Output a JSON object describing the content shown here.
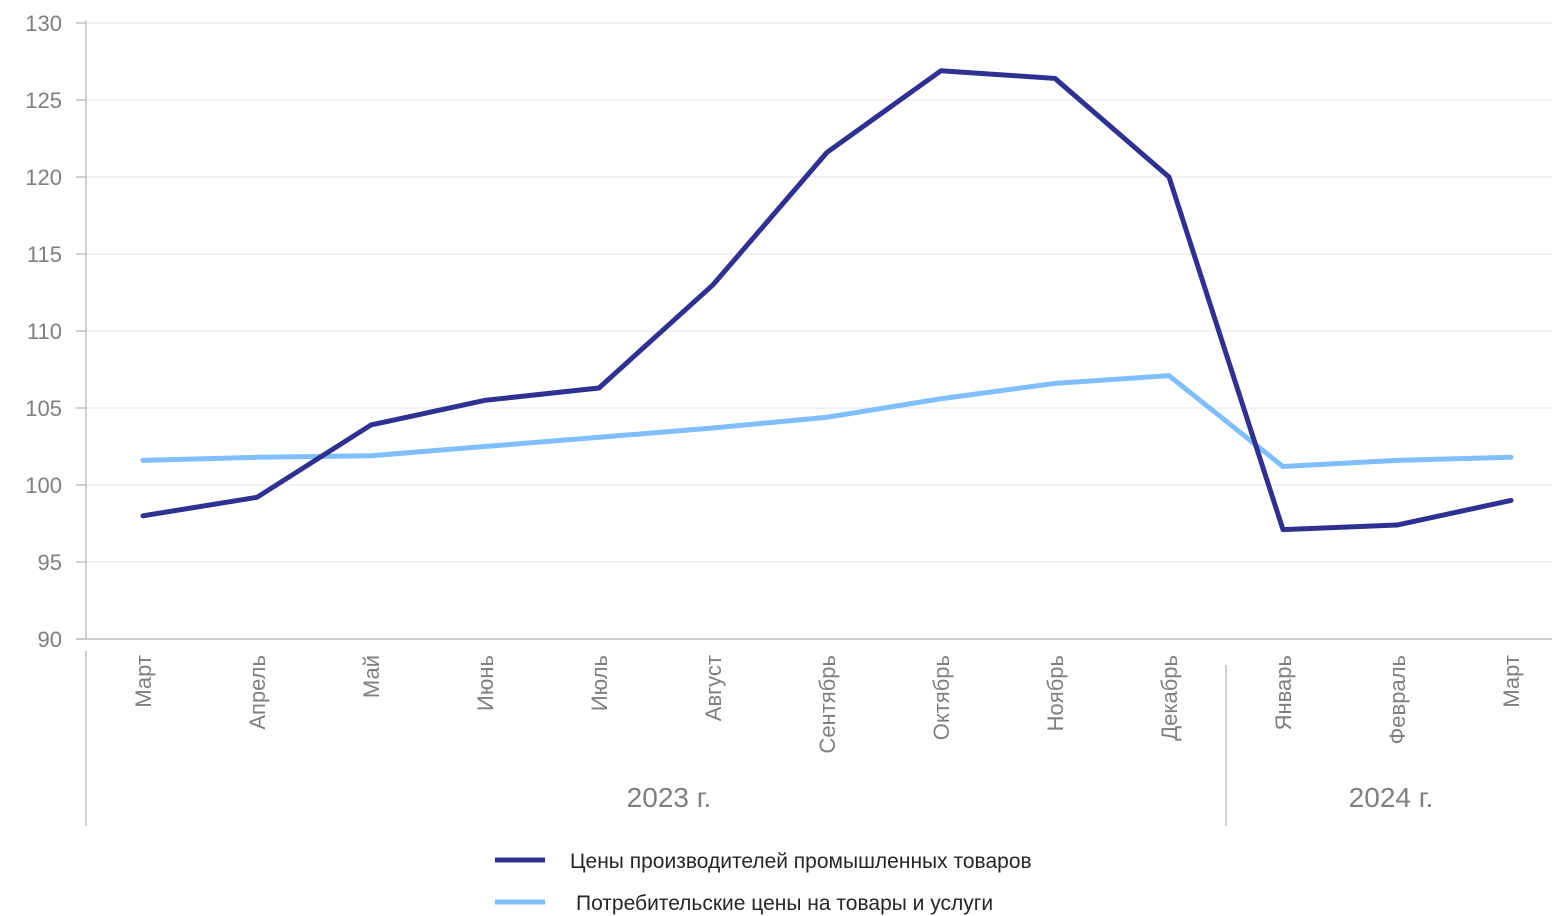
{
  "chart_data": {
    "type": "line",
    "categories": [
      "Март",
      "Апрель",
      "Май",
      "Июнь",
      "Июль",
      "Август",
      "Сентябрь",
      "Октябрь",
      "Ноябрь",
      "Декабрь",
      "Январь",
      "Февраль",
      "Март"
    ],
    "groups": [
      {
        "label": "2023 г.",
        "from": 0,
        "to": 9
      },
      {
        "label": "2024 г.",
        "from": 10,
        "to": 12
      }
    ],
    "series": [
      {
        "name": "Цены производителей промышленных товаров",
        "color": "#2e3192",
        "values": [
          98.0,
          99.2,
          103.9,
          105.5,
          106.3,
          113.0,
          121.6,
          126.9,
          126.4,
          120.0,
          97.1,
          97.4,
          99.0
        ]
      },
      {
        "name": "Потребительские цены на товары и услуги",
        "color": "#7fbfff",
        "values": [
          101.6,
          101.8,
          101.9,
          102.5,
          103.1,
          103.7,
          104.4,
          105.6,
          106.6,
          107.1,
          101.2,
          101.6,
          101.8
        ]
      }
    ],
    "ylim": [
      90,
      130
    ],
    "yticks": [
      90,
      95,
      100,
      105,
      110,
      115,
      120,
      125,
      130
    ],
    "grid": true,
    "legend_position": "bottom"
  }
}
